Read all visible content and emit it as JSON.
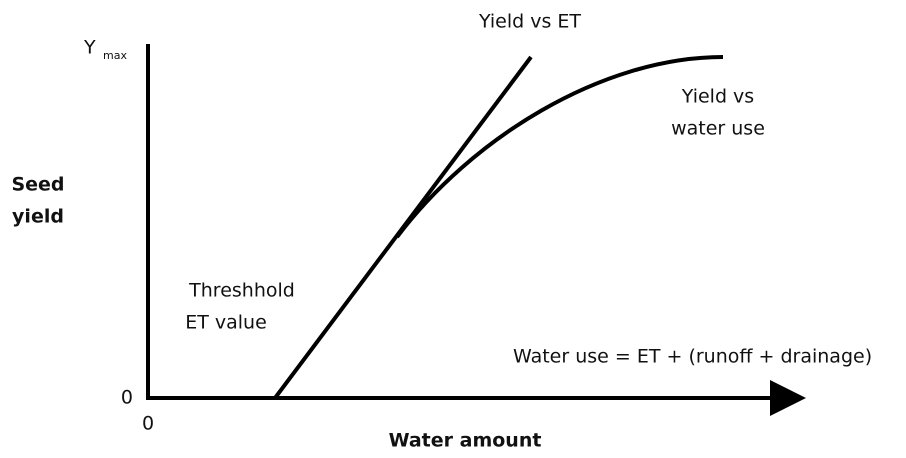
{
  "axes": {
    "y_label": [
      "Seed",
      "yield"
    ],
    "y_top": "Y",
    "y_top_subscript": "max",
    "y_origin": "0",
    "x_origin": "0",
    "x_label": "Water amount"
  },
  "curves": {
    "et_line_label": "Yield vs ET",
    "water_use_label": [
      "Yield vs",
      "water use"
    ]
  },
  "annotations": {
    "threshold": [
      "Threshhold",
      "ET value"
    ],
    "equation": "Water use = ET + (runoff + drainage)"
  }
}
